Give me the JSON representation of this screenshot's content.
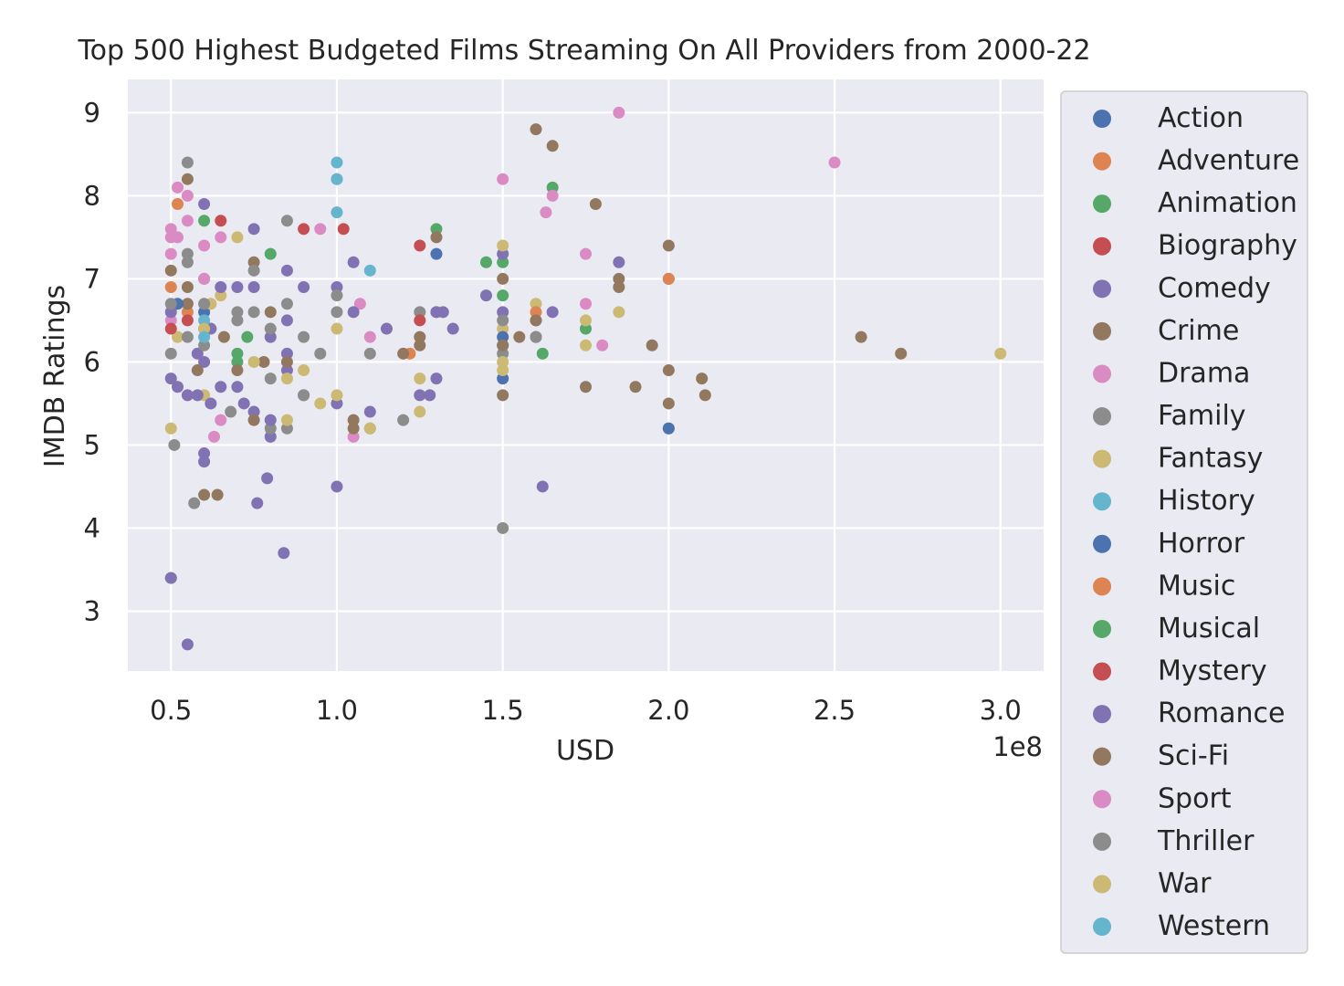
{
  "chart_data": {
    "type": "scatter",
    "title": "Top 500 Highest Budgeted Films Streaming On All Providers from 2000-22",
    "xlabel": "USD",
    "ylabel": "IMDB Ratings",
    "x_offset_text": "1e8",
    "xlim": [
      0.37,
      3.13
    ],
    "ylim": [
      2.28,
      9.4
    ],
    "x_ticks": [
      0.5,
      1.0,
      1.5,
      2.0,
      2.5,
      3.0
    ],
    "x_tick_labels": [
      "0.5",
      "1.0",
      "1.5",
      "2.0",
      "2.5",
      "3.0"
    ],
    "y_ticks": [
      3,
      4,
      5,
      6,
      7,
      8,
      9
    ],
    "y_tick_labels": [
      "3",
      "4",
      "5",
      "6",
      "7",
      "8",
      "9"
    ],
    "grid": true,
    "legend_position": "outside-right",
    "background": "#eaeaf2",
    "series": [
      {
        "name": "Action",
        "color": "#4c72b0",
        "points": [
          [
            1.5,
            5.8
          ],
          [
            1.5,
            6.2
          ],
          [
            2.0,
            7.0
          ],
          [
            0.6,
            6.6
          ],
          [
            1.3,
            7.3
          ]
        ]
      },
      {
        "name": "Adventure",
        "color": "#dd8452",
        "points": [
          [
            0.52,
            7.9
          ],
          [
            2.0,
            7.0
          ],
          [
            1.22,
            6.1
          ],
          [
            0.55,
            6.6
          ]
        ]
      },
      {
        "name": "Animation",
        "color": "#55a868",
        "points": [
          [
            0.6,
            7.7
          ],
          [
            0.8,
            7.3
          ],
          [
            0.7,
            6.0
          ],
          [
            1.3,
            7.6
          ],
          [
            1.65,
            8.1
          ],
          [
            1.45,
            7.2
          ],
          [
            1.5,
            7.2
          ],
          [
            1.75,
            6.4
          ],
          [
            1.62,
            6.1
          ],
          [
            0.73,
            6.3
          ],
          [
            0.5,
            3.4
          ]
        ]
      },
      {
        "name": "Biography",
        "color": "#c44e52",
        "points": [
          [
            0.65,
            7.7
          ],
          [
            0.9,
            7.6
          ],
          [
            1.02,
            7.6
          ],
          [
            1.25,
            7.4
          ],
          [
            0.55,
            6.5
          ]
        ]
      },
      {
        "name": "Comedy",
        "color": "#8172b3",
        "points": [
          [
            0.6,
            7.9
          ],
          [
            0.75,
            7.6
          ],
          [
            0.85,
            7.1
          ],
          [
            0.9,
            6.9
          ],
          [
            1.0,
            6.9
          ],
          [
            1.05,
            7.2
          ],
          [
            1.3,
            6.6
          ],
          [
            1.35,
            6.4
          ],
          [
            1.5,
            7.3
          ],
          [
            1.65,
            6.6
          ],
          [
            1.85,
            7.2
          ],
          [
            0.5,
            5.8
          ],
          [
            0.55,
            5.6
          ],
          [
            0.6,
            4.9
          ],
          [
            0.6,
            4.8
          ],
          [
            0.65,
            5.7
          ],
          [
            0.75,
            5.4
          ],
          [
            0.8,
            5.1
          ],
          [
            0.85,
            5.9
          ],
          [
            0.9,
            5.6
          ],
          [
            1.0,
            5.5
          ],
          [
            0.79,
            4.6
          ],
          [
            0.76,
            4.3
          ],
          [
            0.84,
            3.7
          ],
          [
            1.0,
            4.5
          ],
          [
            1.62,
            4.5
          ],
          [
            0.55,
            2.6
          ],
          [
            0.5,
            3.4
          ],
          [
            1.25,
            5.6
          ],
          [
            1.3,
            5.8
          ],
          [
            1.45,
            6.8
          ],
          [
            1.6,
            6.3
          ],
          [
            1.32,
            6.6
          ],
          [
            0.62,
            6.4
          ],
          [
            0.7,
            6.9
          ],
          [
            0.8,
            6.3
          ],
          [
            0.85,
            6.5
          ],
          [
            1.1,
            5.4
          ],
          [
            1.28,
            5.6
          ],
          [
            0.58,
            6.1
          ]
        ]
      },
      {
        "name": "Crime",
        "color": "#937860",
        "points": [
          [
            0.5,
            7.1
          ],
          [
            0.55,
            8.2
          ],
          [
            0.75,
            7.2
          ],
          [
            1.3,
            7.5
          ],
          [
            1.6,
            8.8
          ],
          [
            1.65,
            8.6
          ],
          [
            1.78,
            7.9
          ],
          [
            2.0,
            7.4
          ],
          [
            1.85,
            7.0
          ],
          [
            1.6,
            6.5
          ],
          [
            1.55,
            6.3
          ],
          [
            1.95,
            6.2
          ],
          [
            2.0,
            5.9
          ],
          [
            2.1,
            5.8
          ],
          [
            2.11,
            5.6
          ],
          [
            2.0,
            5.5
          ],
          [
            1.9,
            5.7
          ],
          [
            1.75,
            5.7
          ],
          [
            1.5,
            5.6
          ],
          [
            2.58,
            6.3
          ],
          [
            2.7,
            6.1
          ],
          [
            0.6,
            4.4
          ],
          [
            0.64,
            4.4
          ],
          [
            1.05,
            5.3
          ],
          [
            1.2,
            6.1
          ],
          [
            1.25,
            6.2
          ],
          [
            0.78,
            6.0
          ],
          [
            0.7,
            5.9
          ],
          [
            1.5,
            7.0
          ],
          [
            0.55,
            6.7
          ]
        ]
      },
      {
        "name": "Drama",
        "color": "#da8bc3",
        "points": [
          [
            0.5,
            7.6
          ],
          [
            0.52,
            8.1
          ],
          [
            0.55,
            8.0
          ],
          [
            0.55,
            7.7
          ],
          [
            0.5,
            7.3
          ],
          [
            0.6,
            7.4
          ],
          [
            0.65,
            7.5
          ],
          [
            0.95,
            7.6
          ],
          [
            1.0,
            8.2
          ],
          [
            1.07,
            6.7
          ],
          [
            1.1,
            6.3
          ],
          [
            1.05,
            5.1
          ],
          [
            0.63,
            5.1
          ],
          [
            0.65,
            5.3
          ],
          [
            1.5,
            8.2
          ],
          [
            1.63,
            7.8
          ],
          [
            1.65,
            8.0
          ],
          [
            1.85,
            9.0
          ],
          [
            1.75,
            7.3
          ],
          [
            1.75,
            6.7
          ],
          [
            1.8,
            6.2
          ],
          [
            2.5,
            8.4
          ],
          [
            0.5,
            6.5
          ],
          [
            0.52,
            7.5
          ]
        ]
      },
      {
        "name": "Family",
        "color": "#8c8c8c",
        "points": [
          [
            0.55,
            8.4
          ],
          [
            0.55,
            7.3
          ],
          [
            0.6,
            7.0
          ],
          [
            0.7,
            6.6
          ],
          [
            0.75,
            6.6
          ],
          [
            0.85,
            7.7
          ],
          [
            0.8,
            6.4
          ],
          [
            0.5,
            6.1
          ],
          [
            0.51,
            5.0
          ],
          [
            0.57,
            4.3
          ],
          [
            0.8,
            5.2
          ],
          [
            0.85,
            5.2
          ],
          [
            0.95,
            6.1
          ],
          [
            1.1,
            6.1
          ],
          [
            1.1,
            5.2
          ],
          [
            1.2,
            5.3
          ],
          [
            1.5,
            4.0
          ],
          [
            1.5,
            6.1
          ],
          [
            1.6,
            6.3
          ],
          [
            2.0,
            5.2
          ],
          [
            1.0,
            6.6
          ],
          [
            1.25,
            6.6
          ],
          [
            0.9,
            6.3
          ],
          [
            0.6,
            6.2
          ],
          [
            0.68,
            5.4
          ]
        ]
      },
      {
        "name": "Fantasy",
        "color": "#ccb974",
        "points": [
          [
            0.5,
            5.2
          ],
          [
            0.52,
            6.3
          ],
          [
            0.6,
            5.6
          ],
          [
            0.65,
            6.8
          ],
          [
            0.7,
            7.5
          ],
          [
            0.75,
            6.0
          ],
          [
            0.85,
            5.3
          ],
          [
            0.9,
            5.9
          ],
          [
            0.95,
            5.5
          ],
          [
            1.0,
            6.4
          ],
          [
            1.0,
            5.6
          ],
          [
            1.0,
            8.2
          ],
          [
            1.1,
            5.2
          ],
          [
            1.25,
            5.8
          ],
          [
            1.25,
            5.4
          ],
          [
            1.5,
            7.4
          ],
          [
            1.5,
            6.4
          ],
          [
            1.5,
            5.9
          ],
          [
            1.6,
            6.7
          ],
          [
            1.75,
            6.5
          ],
          [
            1.75,
            6.2
          ],
          [
            1.85,
            6.6
          ],
          [
            3.0,
            6.1
          ],
          [
            0.62,
            6.7
          ]
        ]
      },
      {
        "name": "History",
        "color": "#64b5cd",
        "points": [
          [
            1.0,
            8.4
          ],
          [
            1.0,
            7.8
          ],
          [
            1.1,
            7.1
          ],
          [
            0.6,
            6.5
          ]
        ]
      },
      {
        "name": "Horror",
        "color": "#4c72b0",
        "points": [
          [
            1.5,
            6.3
          ],
          [
            2.0,
            5.2
          ],
          [
            0.52,
            6.7
          ]
        ]
      },
      {
        "name": "Music",
        "color": "#dd8452",
        "points": [
          [
            0.5,
            6.9
          ],
          [
            1.6,
            6.6
          ]
        ]
      },
      {
        "name": "Musical",
        "color": "#55a868",
        "points": [
          [
            0.7,
            6.1
          ],
          [
            1.5,
            6.8
          ]
        ]
      },
      {
        "name": "Mystery",
        "color": "#c44e52",
        "points": [
          [
            0.5,
            6.4
          ],
          [
            1.25,
            6.5
          ]
        ]
      },
      {
        "name": "Romance",
        "color": "#8172b3",
        "points": [
          [
            0.5,
            6.6
          ],
          [
            0.52,
            5.7
          ],
          [
            0.58,
            5.6
          ],
          [
            0.6,
            6.0
          ],
          [
            0.65,
            6.9
          ],
          [
            0.7,
            5.7
          ],
          [
            0.75,
            6.9
          ],
          [
            0.8,
            5.3
          ],
          [
            0.85,
            6.1
          ],
          [
            1.05,
            6.6
          ],
          [
            1.15,
            6.4
          ],
          [
            1.3,
            6.6
          ],
          [
            1.5,
            6.6
          ],
          [
            0.62,
            5.5
          ],
          [
            0.72,
            5.5
          ]
        ]
      },
      {
        "name": "Sci-Fi",
        "color": "#937860",
        "points": [
          [
            0.55,
            6.9
          ],
          [
            0.6,
            6.4
          ],
          [
            0.66,
            6.3
          ],
          [
            0.75,
            5.3
          ],
          [
            0.8,
            6.6
          ],
          [
            0.85,
            6.0
          ],
          [
            1.05,
            5.2
          ],
          [
            1.25,
            6.3
          ],
          [
            1.5,
            6.2
          ],
          [
            1.6,
            6.5
          ],
          [
            1.85,
            6.9
          ],
          [
            0.58,
            5.9
          ]
        ]
      },
      {
        "name": "Sport",
        "color": "#da8bc3",
        "points": [
          [
            0.5,
            7.5
          ],
          [
            0.6,
            7.0
          ]
        ]
      },
      {
        "name": "Thriller",
        "color": "#8c8c8c",
        "points": [
          [
            0.5,
            6.7
          ],
          [
            0.55,
            7.2
          ],
          [
            0.6,
            6.7
          ],
          [
            0.7,
            6.5
          ],
          [
            0.75,
            7.1
          ],
          [
            0.8,
            5.8
          ],
          [
            0.85,
            6.7
          ],
          [
            1.0,
            6.8
          ],
          [
            1.5,
            6.5
          ],
          [
            1.6,
            6.3
          ],
          [
            0.9,
            5.6
          ],
          [
            0.55,
            6.3
          ]
        ]
      },
      {
        "name": "War",
        "color": "#ccb974",
        "points": [
          [
            0.6,
            6.4
          ],
          [
            0.85,
            5.8
          ],
          [
            1.5,
            6.0
          ]
        ]
      },
      {
        "name": "Western",
        "color": "#64b5cd",
        "points": [
          [
            0.6,
            6.3
          ],
          [
            1.0,
            8.2
          ]
        ]
      }
    ]
  }
}
